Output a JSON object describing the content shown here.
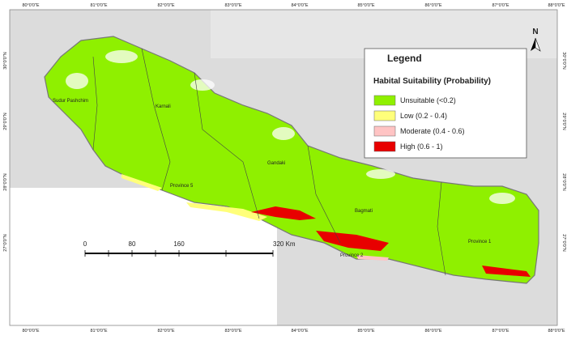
{
  "map": {
    "lon_labels": [
      "80°0'0\"E",
      "81°0'0\"E",
      "82°0'0\"E",
      "83°0'0\"E",
      "84°0'0\"E",
      "85°0'0\"E",
      "86°0'0\"E",
      "87°0'0\"E",
      "88°0'0\"E"
    ],
    "lat_labels": [
      "30°0'0\"N",
      "29°0'0\"N",
      "28°0'0\"N",
      "27°0'0\"N"
    ],
    "north": "N",
    "legend": {
      "title": "Legend",
      "subtitle": "Habital Suitability (Probability)",
      "items": [
        {
          "label": "Unsuitable (<0.2)",
          "color": "#8ff000"
        },
        {
          "label": "Low (0.2 - 0.4)",
          "color": "#ffff7a"
        },
        {
          "label": "Moderate (0.4 - 0.6)",
          "color": "#ffc4c4"
        },
        {
          "label": "High (0.6 - 1)",
          "color": "#e80000"
        }
      ]
    },
    "provinces": [
      "Sudur Pashchim",
      "Karnali",
      "Gandaki",
      "Province 5",
      "Bagmati",
      "Province 1",
      "Province 2"
    ],
    "scale": [
      "0",
      "80",
      "160",
      "320 Km"
    ]
  }
}
